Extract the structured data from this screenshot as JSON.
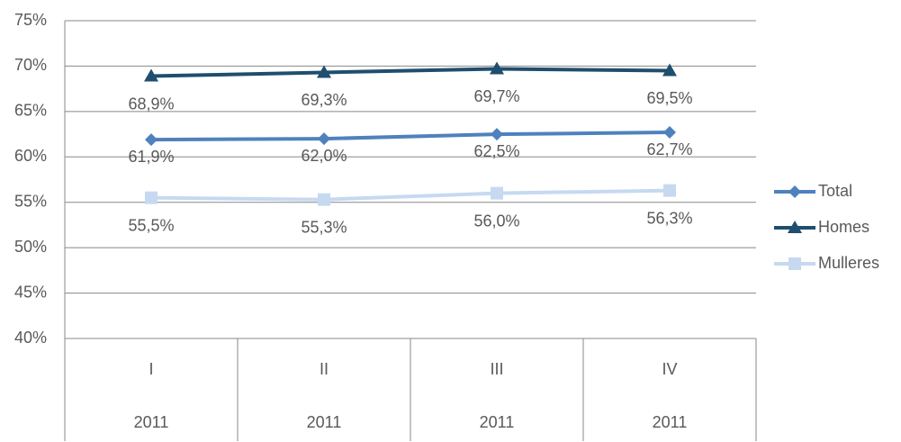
{
  "chart_data": {
    "type": "line",
    "categories": [
      "I",
      "II",
      "III",
      "IV"
    ],
    "category_groups": [
      "2011",
      "2011",
      "2011",
      "2011"
    ],
    "series": [
      {
        "name": "Total",
        "color": "#4f81bd",
        "marker": "diamond",
        "values": [
          61.9,
          62.0,
          62.5,
          62.7
        ],
        "value_labels": [
          "61,9%",
          "62,0%",
          "62,5%",
          "62,7%"
        ]
      },
      {
        "name": "Homes",
        "color": "#1f4e6e",
        "marker": "triangle",
        "values": [
          68.9,
          69.3,
          69.7,
          69.5
        ],
        "value_labels": [
          "68,9%",
          "69,3%",
          "69,7%",
          "69,5%"
        ]
      },
      {
        "name": "Mulleres",
        "color": "#c6d9f1",
        "marker": "square",
        "values": [
          55.5,
          55.3,
          56.0,
          56.3
        ],
        "value_labels": [
          "55,5%",
          "55,3%",
          "56,0%",
          "56,3%"
        ]
      }
    ],
    "ylim": [
      40,
      75
    ],
    "yticks": [
      {
        "value": 40,
        "label": "40%"
      },
      {
        "value": 45,
        "label": "45%"
      },
      {
        "value": 50,
        "label": "50%"
      },
      {
        "value": 55,
        "label": "55%"
      },
      {
        "value": 60,
        "label": "60%"
      },
      {
        "value": 65,
        "label": "65%"
      },
      {
        "value": 70,
        "label": "70%"
      },
      {
        "value": 75,
        "label": "75%"
      }
    ],
    "grid": true,
    "legend": "right"
  }
}
